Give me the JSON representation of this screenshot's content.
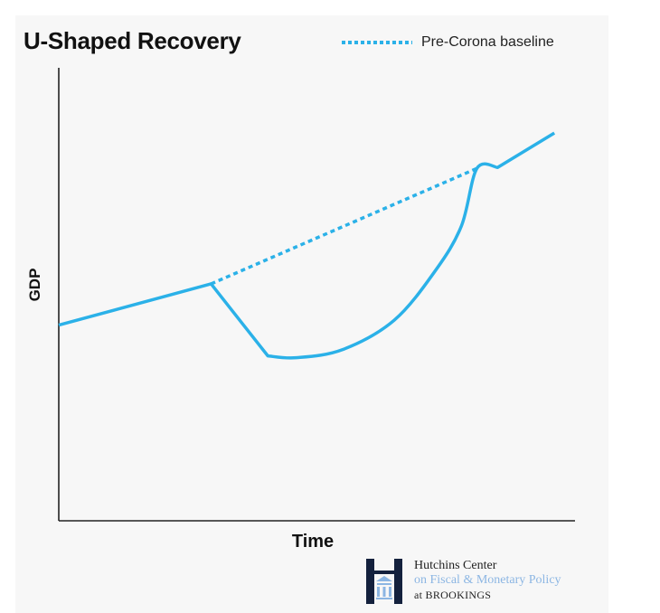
{
  "chart_data": {
    "type": "line",
    "title": "U-Shaped Recovery",
    "xlabel": "Time",
    "ylabel": "GDP",
    "xlim": [
      0,
      100
    ],
    "ylim": [
      0,
      100
    ],
    "grid": false,
    "legend_position": "top-right",
    "series": [
      {
        "name": "GDP path",
        "style": "solid",
        "color": "#2bb1e8",
        "x": [
          0,
          29.5,
          40.5,
          46,
          55,
          65,
          73,
          78,
          81,
          85,
          96
        ],
        "y": [
          43.2,
          52.3,
          36.4,
          36.0,
          37.8,
          44.3,
          55.3,
          65.1,
          77.8,
          78.0,
          85.6
        ]
      },
      {
        "name": "Pre-Corona baseline",
        "style": "dotted",
        "color": "#2bb1e8",
        "x": [
          29.5,
          81
        ],
        "y": [
          52.3,
          77.8
        ]
      }
    ]
  },
  "legend": {
    "label": "Pre-Corona baseline"
  },
  "branding": {
    "line1": "Hutchins Center",
    "line2": "on Fiscal & Monetary Policy",
    "line3": "at BROOKINGS"
  },
  "colors": {
    "accent": "#2bb1e8",
    "brand_navy": "#14213d",
    "brand_light_blue": "#8cb6e3"
  }
}
